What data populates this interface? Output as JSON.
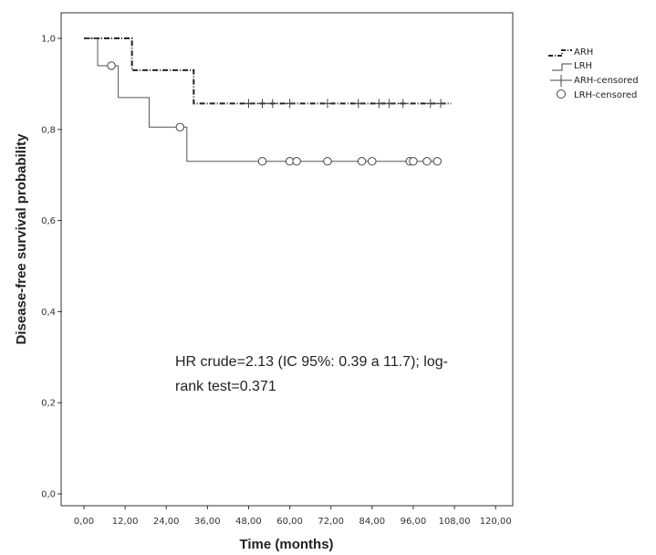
{
  "chart_data": {
    "type": "line",
    "subtype": "kaplan-meier",
    "xlabel": "Time (months)",
    "ylabel": "Disease-free survival probability",
    "xlim": [
      0,
      120
    ],
    "ylim": [
      0,
      1
    ],
    "x_ticks": [
      "0,00",
      "12,00",
      "24,00",
      "36,00",
      "48,00",
      "60,00",
      "72,00",
      "84,00",
      "96,00",
      "108,00",
      "120,00"
    ],
    "y_ticks": [
      "0,0",
      "0,2",
      "0,4",
      "0,6",
      "0,8",
      "1,0"
    ],
    "grid": false,
    "legend_position": "top-right outside",
    "legend": [
      "ARH",
      "LRH",
      "ARH-censored",
      "LRH-censored"
    ],
    "series": [
      {
        "name": "ARH",
        "style": "dash-dot",
        "color": "#222222",
        "steps": [
          [
            0,
            1.0
          ],
          [
            14,
            0.93
          ],
          [
            32,
            0.857
          ],
          [
            107,
            0.857
          ]
        ],
        "censored": [
          48,
          52,
          55,
          60,
          71,
          80,
          86,
          89,
          93,
          101,
          104
        ]
      },
      {
        "name": "LRH",
        "style": "solid",
        "color": "#555555",
        "steps": [
          [
            0,
            1.0
          ],
          [
            4,
            0.94
          ],
          [
            10,
            0.87
          ],
          [
            19,
            0.805
          ],
          [
            30,
            0.73
          ],
          [
            104,
            0.73
          ]
        ],
        "censored": [
          8,
          28,
          52,
          60,
          62,
          71,
          81,
          84,
          95,
          96,
          100,
          103
        ],
        "censored_y": [
          0.94,
          0.805,
          0.73,
          0.73,
          0.73,
          0.73,
          0.73,
          0.73,
          0.73,
          0.73,
          0.73,
          0.73
        ]
      }
    ],
    "annotation": [
      "HR crude=2.13 (IC 95%: 0.39 a 11.7); log-",
      "rank test=0.371"
    ]
  }
}
